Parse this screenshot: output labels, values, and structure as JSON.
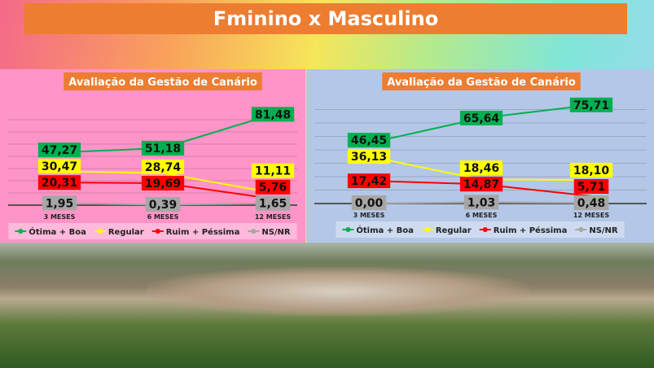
{
  "header": {
    "title": "Fminino x Masculino"
  },
  "colors": {
    "title_bg": "#ed7d31",
    "left_bg": "#ff94c8",
    "right_bg": "#b4c7e7"
  },
  "chart_data": [
    {
      "type": "line",
      "title": "Avaliação da Gestão de Canário",
      "categories": [
        "3 MESES",
        "6 MESES",
        "12 MESES"
      ],
      "legend_position": "bottom",
      "grid": true,
      "series": [
        {
          "name": "Ótima + Boa",
          "color": "#00b050",
          "values": [
            47.27,
            51.18,
            81.48
          ],
          "labels": [
            "47,27",
            "51,18",
            "81,48"
          ]
        },
        {
          "name": "Regular",
          "color": "#ffff00",
          "values": [
            30.47,
            28.74,
            11.11
          ],
          "labels": [
            "30,47",
            "28,74",
            "11,11"
          ]
        },
        {
          "name": "Ruim + Péssima",
          "color": "#ff0000",
          "values": [
            20.31,
            19.69,
            5.76
          ],
          "labels": [
            "20,31",
            "19,69",
            "5,76"
          ]
        },
        {
          "name": "NS/NR",
          "color": "#a6a6a6",
          "values": [
            1.95,
            0.39,
            1.65
          ],
          "labels": [
            "1,95",
            "0,39",
            "1,65"
          ]
        }
      ]
    },
    {
      "type": "line",
      "title": "Avaliação da Gestão de Canário",
      "categories": [
        "3 MESES",
        "6 MESES",
        "12 MESES"
      ],
      "legend_position": "bottom",
      "grid": true,
      "series": [
        {
          "name": "Ótima + Boa",
          "color": "#00b050",
          "values": [
            46.45,
            65.64,
            75.71
          ],
          "labels": [
            "46,45",
            "65,64",
            "75,71"
          ]
        },
        {
          "name": "Regular",
          "color": "#ffff00",
          "values": [
            36.13,
            18.46,
            18.1
          ],
          "labels": [
            "36,13",
            "18,46",
            "18,10"
          ]
        },
        {
          "name": "Ruim + Péssima",
          "color": "#ff0000",
          "values": [
            17.42,
            14.87,
            5.71
          ],
          "labels": [
            "17,42",
            "14,87",
            "5,71"
          ]
        },
        {
          "name": "NS/NR",
          "color": "#a6a6a6",
          "values": [
            0.0,
            1.03,
            0.48
          ],
          "labels": [
            "0,00",
            "1,03",
            "0,48"
          ]
        }
      ]
    }
  ]
}
